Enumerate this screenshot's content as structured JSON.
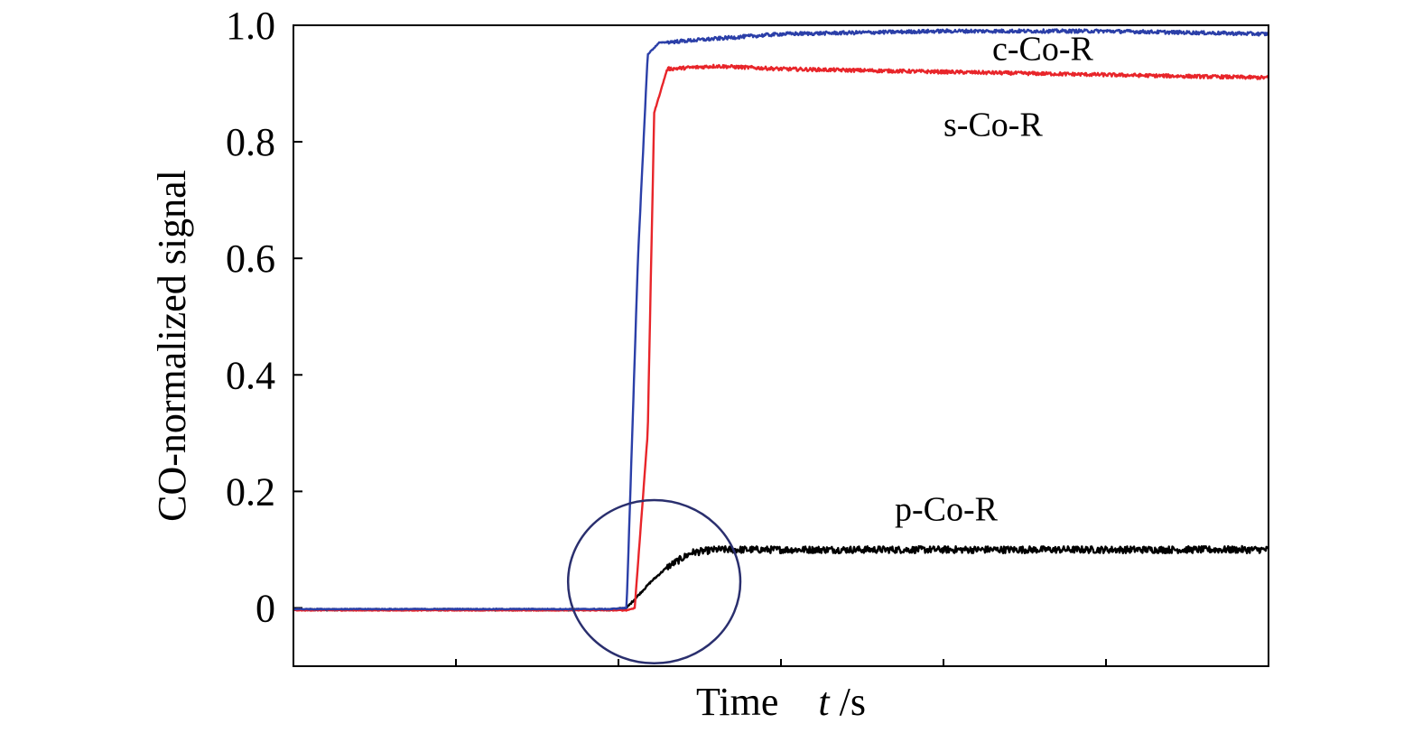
{
  "chart_data": {
    "type": "line",
    "xlabel_text": "Time",
    "xlabel_var": "t",
    "xlabel_unit": " /s",
    "ylabel": "CO-normalized signal",
    "ylim": [
      -0.1,
      1.0
    ],
    "yticks": [
      {
        "value": 0,
        "label": "0"
      },
      {
        "value": 0.2,
        "label": "0.2"
      },
      {
        "value": 0.4,
        "label": "0.4"
      },
      {
        "value": 0.6,
        "label": "0.6"
      },
      {
        "value": 0.8,
        "label": "0.8"
      },
      {
        "value": 1.0,
        "label": "1.0"
      }
    ],
    "xlim": [
      0,
      6
    ],
    "xticks": [
      0,
      1,
      2,
      3,
      4,
      5,
      6
    ],
    "series": [
      {
        "name": "c-Co-R",
        "color": "#2b3fa8",
        "noise": 0.003,
        "x": [
          0,
          1.95,
          2.05,
          2.12,
          2.18,
          2.25,
          2.5,
          3,
          4,
          5,
          6
        ],
        "y": [
          -0.002,
          -0.002,
          0.0,
          0.6,
          0.95,
          0.97,
          0.975,
          0.985,
          0.99,
          0.99,
          0.985
        ]
      },
      {
        "name": "s-Co-R",
        "color": "#e8252a",
        "noise": 0.003,
        "x": [
          0,
          2.05,
          2.1,
          2.18,
          2.22,
          2.3,
          2.6,
          3,
          4,
          5,
          6
        ],
        "y": [
          -0.004,
          -0.004,
          0.0,
          0.3,
          0.85,
          0.925,
          0.93,
          0.925,
          0.92,
          0.915,
          0.91
        ]
      },
      {
        "name": "p-Co-R",
        "color": "#000000",
        "noise": 0.006,
        "x": [
          0,
          1.95,
          2.05,
          2.1,
          2.2,
          2.3,
          2.45,
          2.6,
          3,
          4,
          5,
          6
        ],
        "y": [
          -0.003,
          -0.003,
          0.0,
          0.015,
          0.045,
          0.07,
          0.095,
          0.1,
          0.1,
          0.1,
          0.1,
          0.1
        ]
      }
    ],
    "annotations": [
      {
        "text": "c-Co-R",
        "x": 4.3,
        "y": 0.94
      },
      {
        "text": "s-Co-R",
        "x": 4.0,
        "y": 0.81
      },
      {
        "text": "p-Co-R",
        "x": 3.7,
        "y": 0.15
      }
    ],
    "highlight_ellipse": {
      "cx": 2.22,
      "cy": 0.045,
      "rx": 0.53,
      "ry": 0.14,
      "color": "#2a2f6e"
    }
  }
}
